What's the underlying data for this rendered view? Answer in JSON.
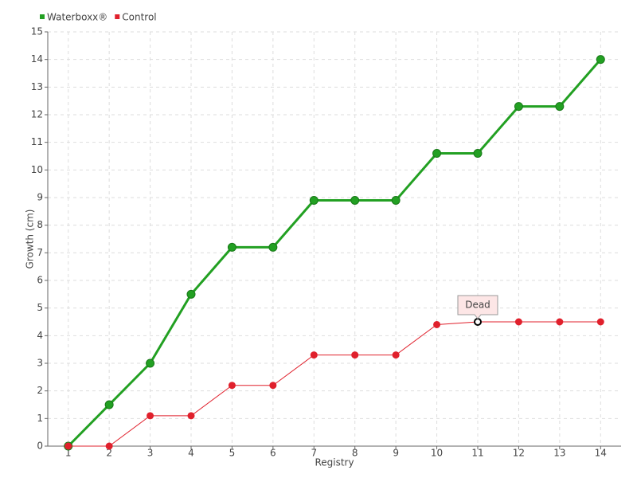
{
  "chart_data": {
    "type": "line",
    "x": [
      1,
      2,
      3,
      4,
      5,
      6,
      7,
      8,
      9,
      10,
      11,
      12,
      13,
      14
    ],
    "series": [
      {
        "name": "Waterboxx®",
        "color": "#22a022",
        "values": [
          0,
          1.5,
          3,
          5.5,
          7.2,
          7.2,
          8.9,
          8.9,
          8.9,
          10.6,
          10.6,
          12.3,
          12.3,
          14
        ]
      },
      {
        "name": "Control",
        "color": "#e0202c",
        "values": [
          0,
          0,
          1.1,
          1.1,
          2.2,
          2.2,
          3.3,
          3.3,
          3.3,
          4.4,
          4.5,
          4.5,
          4.5,
          4.5
        ]
      }
    ],
    "xlim": [
      0.5,
      14.5
    ],
    "xticks": [
      1,
      2,
      3,
      4,
      5,
      6,
      7,
      8,
      9,
      10,
      11,
      12,
      13,
      14
    ],
    "ylim": [
      0,
      15
    ],
    "yticks": [
      0,
      1,
      2,
      3,
      4,
      5,
      6,
      7,
      8,
      9,
      10,
      11,
      12,
      13,
      14,
      15
    ],
    "x_label": "Registry",
    "y_label": "Growth (cm)",
    "grid": true,
    "legend": "top-left",
    "annotations": [
      {
        "text": "Dead",
        "x": 11,
        "y": 4.5
      }
    ]
  }
}
